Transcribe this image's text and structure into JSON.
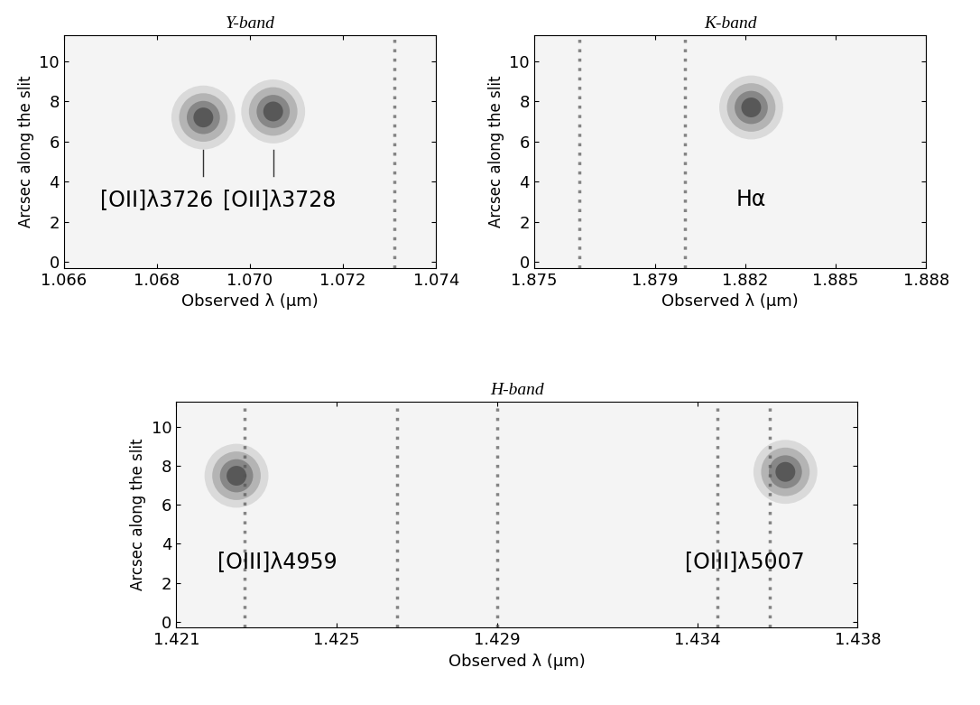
{
  "chart_data": [
    {
      "type": "spectrum_image",
      "title": "Y-band",
      "x_label": "Observed λ (μm)",
      "y_label": "Arcsec along the slit",
      "xlim": [
        1.066,
        1.074
      ],
      "xticks": [
        1.066,
        1.068,
        {
          "value": 1.07,
          "label": "1.070"
        },
        1.072,
        1.074
      ],
      "ylim": [
        -0.3,
        11.3
      ],
      "yticks": [
        0,
        2,
        4,
        6,
        8,
        10
      ],
      "lines": [
        {
          "label": "[OII]λ3726",
          "x": 1.069,
          "y": 7.2
        },
        {
          "label": "[OII]λ3728",
          "x": 1.0705,
          "y": 7.5
        }
      ],
      "sky_lines": [
        1.0731
      ]
    },
    {
      "type": "spectrum_image",
      "title": "K-band",
      "x_label": "Observed λ (μm)",
      "y_label": "Arcsec along the slit",
      "xlim": [
        1.875,
        1.888
      ],
      "xticks": [
        1.875,
        1.879,
        1.882,
        1.885,
        1.888
      ],
      "ylim": [
        -0.3,
        11.3
      ],
      "yticks": [
        0,
        2,
        4,
        6,
        8,
        10
      ],
      "lines": [
        {
          "label": "Hα",
          "x": 1.8822,
          "y": 7.7
        }
      ],
      "sky_lines": [
        1.8765,
        1.88
      ]
    },
    {
      "type": "spectrum_image",
      "title": "H-band",
      "x_label": "Observed λ (μm)",
      "y_label": "Arcsec along the slit",
      "xlim": [
        1.421,
        1.438
      ],
      "xticks": [
        1.421,
        1.425,
        1.429,
        1.434,
        1.438
      ],
      "ylim": [
        -0.3,
        11.3
      ],
      "yticks": [
        0,
        2,
        4,
        6,
        8,
        10
      ],
      "lines": [
        {
          "label": "[OIII]λ4959",
          "x": 1.4225,
          "y": 7.5
        },
        {
          "label": "[OIII]λ5007",
          "x": 1.4362,
          "y": 7.7
        }
      ],
      "sky_lines": [
        1.4227,
        1.4265,
        1.429,
        1.4345,
        1.4358
      ]
    }
  ]
}
